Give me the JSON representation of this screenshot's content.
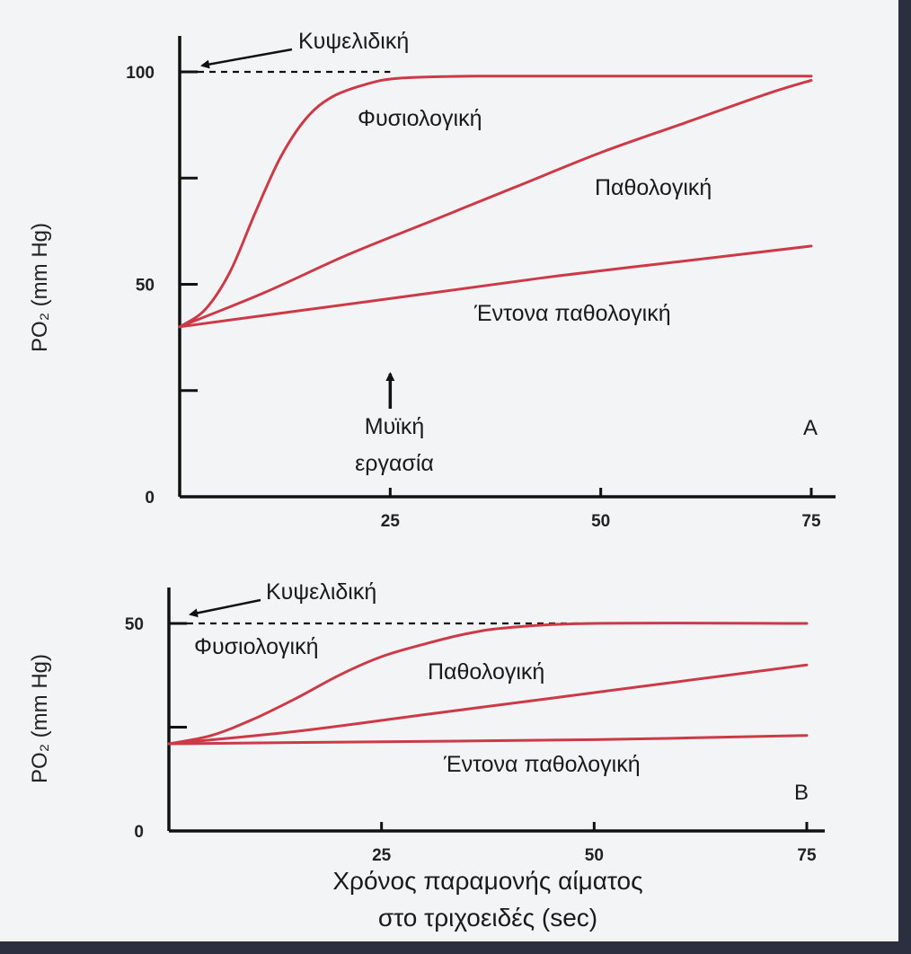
{
  "colors": {
    "curve": "#cc3a47",
    "axis": "#111111",
    "background": "#f2f4f6",
    "frame": "#2b2f3f"
  },
  "xlabel_lines": [
    "Χρόνος παραμονής αίματος",
    "στο τριχοειδές (sec)"
  ],
  "chart_data": [
    {
      "type": "line",
      "panel": "A",
      "ylabel": "PO₂ (mm Hg)",
      "xlim": [
        0,
        75
      ],
      "ylim": [
        0,
        100
      ],
      "x_ticks": [
        25,
        50,
        75
      ],
      "y_tick_values": [
        0,
        25,
        50,
        75,
        100
      ],
      "y_tick_labels": [
        "0",
        "",
        "50",
        "",
        "100"
      ],
      "reference": {
        "name": "Κυψελιδική",
        "y": 100,
        "x_end": 25
      },
      "series": [
        {
          "name": "Φυσιολογική",
          "points": [
            [
              0,
              40
            ],
            [
              3,
              44
            ],
            [
              6,
              53
            ],
            [
              9,
              67
            ],
            [
              12,
              80
            ],
            [
              15,
              89
            ],
            [
              18,
              94
            ],
            [
              22,
              97
            ],
            [
              26,
              98.5
            ],
            [
              35,
              99
            ],
            [
              50,
              99
            ],
            [
              75,
              99
            ]
          ]
        },
        {
          "name": "Παθολογική",
          "points": [
            [
              0,
              40
            ],
            [
              10,
              48
            ],
            [
              20,
              57
            ],
            [
              30,
              65
            ],
            [
              40,
              73
            ],
            [
              50,
              81
            ],
            [
              60,
              88
            ],
            [
              70,
              95
            ],
            [
              75,
              98
            ]
          ]
        },
        {
          "name": "Έντονα παθολογική",
          "points": [
            [
              0,
              40
            ],
            [
              15,
              44
            ],
            [
              30,
              48
            ],
            [
              45,
              52
            ],
            [
              60,
              55.5
            ],
            [
              75,
              59
            ]
          ]
        }
      ],
      "annotation_lines": [
        "Μυϊκή",
        "εργασία"
      ],
      "annotation_x": 25
    },
    {
      "type": "line",
      "panel": "B",
      "ylabel": "PO₂ (mm Hg)",
      "xlim": [
        0,
        75
      ],
      "ylim": [
        0,
        50
      ],
      "x_ticks": [
        25,
        50,
        75
      ],
      "y_tick_values": [
        0,
        25,
        50
      ],
      "y_tick_labels": [
        "0",
        "",
        "50"
      ],
      "reference": {
        "name": "Κυψελιδική",
        "y": 50,
        "x_end": 50
      },
      "series": [
        {
          "name": "Φυσιολογική",
          "points": [
            [
              0,
              21
            ],
            [
              5,
              23
            ],
            [
              10,
              27
            ],
            [
              15,
              32
            ],
            [
              20,
              37.5
            ],
            [
              25,
              42
            ],
            [
              30,
              45
            ],
            [
              35,
              47.5
            ],
            [
              40,
              49
            ],
            [
              50,
              50
            ],
            [
              75,
              50
            ]
          ]
        },
        {
          "name": "Παθολογική",
          "points": [
            [
              0,
              21
            ],
            [
              15,
              24
            ],
            [
              30,
              28
            ],
            [
              45,
              32
            ],
            [
              60,
              36
            ],
            [
              75,
              40
            ]
          ]
        },
        {
          "name": "Έντονα παθολογική",
          "points": [
            [
              0,
              21
            ],
            [
              25,
              21.5
            ],
            [
              50,
              22
            ],
            [
              75,
              23
            ]
          ]
        }
      ]
    }
  ]
}
